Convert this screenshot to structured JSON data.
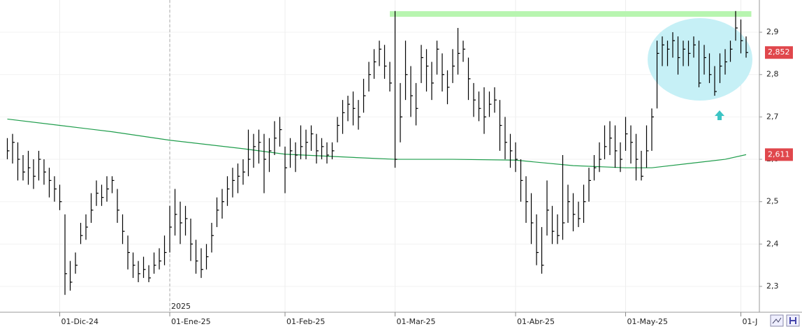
{
  "chart_data": {
    "type": "hlc",
    "color": "#000000",
    "categories": [
      null,
      null,
      null,
      null,
      null,
      null,
      null,
      null,
      null,
      null,
      "01-Dic-24",
      null,
      null,
      null,
      null,
      null,
      null,
      null,
      null,
      null,
      null,
      null,
      null,
      null,
      null,
      null,
      null,
      null,
      null,
      null,
      null,
      "01-Ene-25",
      null,
      null,
      null,
      null,
      null,
      null,
      null,
      null,
      null,
      null,
      null,
      null,
      null,
      null,
      null,
      null,
      null,
      null,
      null,
      null,
      null,
      "01-Feb-25",
      null,
      null,
      null,
      null,
      null,
      null,
      null,
      null,
      null,
      null,
      null,
      null,
      null,
      null,
      null,
      null,
      null,
      null,
      null,
      null,
      "01-Mar-25",
      null,
      null,
      null,
      null,
      null,
      null,
      null,
      null,
      null,
      null,
      null,
      null,
      null,
      null,
      null,
      null,
      null,
      null,
      null,
      null,
      null,
      null,
      "01-Abr-25",
      null,
      null,
      null,
      null,
      null,
      null,
      null,
      null,
      null,
      null,
      null,
      null,
      null,
      null,
      null,
      null,
      null,
      null,
      null,
      null,
      "01-May-25",
      null,
      null,
      null,
      null,
      null,
      null,
      null,
      null,
      null,
      null,
      null,
      null,
      null,
      null,
      null,
      null,
      null,
      null,
      null,
      null,
      null,
      "01-J",
      null
    ],
    "high": [
      2.65,
      2.66,
      2.64,
      2.61,
      2.62,
      2.6,
      2.62,
      2.6,
      2.58,
      2.56,
      2.54,
      2.47,
      2.36,
      2.38,
      2.45,
      2.47,
      2.52,
      2.55,
      2.54,
      2.56,
      2.56,
      2.53,
      2.47,
      2.42,
      2.38,
      2.36,
      2.37,
      2.35,
      2.38,
      2.39,
      2.42,
      2.49,
      2.53,
      2.5,
      2.49,
      2.46,
      2.41,
      2.39,
      2.4,
      2.45,
      2.51,
      2.53,
      2.56,
      2.58,
      2.59,
      2.6,
      2.67,
      2.66,
      2.67,
      2.66,
      2.65,
      2.69,
      2.7,
      2.63,
      2.65,
      2.64,
      2.68,
      2.67,
      2.68,
      2.66,
      2.65,
      2.64,
      2.64,
      2.7,
      2.74,
      2.75,
      2.76,
      2.74,
      2.79,
      2.83,
      2.86,
      2.88,
      2.87,
      2.83,
      2.95,
      2.78,
      2.88,
      2.82,
      2.78,
      2.87,
      2.86,
      2.83,
      2.88,
      2.85,
      2.81,
      2.86,
      2.91,
      2.88,
      2.84,
      2.78,
      2.76,
      2.77,
      2.76,
      2.77,
      2.74,
      2.7,
      2.66,
      2.64,
      2.6,
      2.56,
      2.52,
      2.47,
      2.44,
      2.55,
      2.49,
      2.47,
      2.61,
      2.54,
      2.52,
      2.5,
      2.54,
      2.58,
      2.61,
      2.64,
      2.68,
      2.69,
      2.68,
      2.64,
      2.7,
      2.68,
      2.66,
      2.62,
      2.68,
      2.72,
      2.88,
      2.89,
      2.88,
      2.9,
      2.89,
      2.88,
      2.88,
      2.89,
      2.88,
      2.87,
      2.85,
      2.82,
      2.85,
      2.86,
      2.88,
      2.95,
      2.93,
      2.89
    ],
    "low": [
      2.6,
      2.59,
      2.55,
      2.55,
      2.54,
      2.53,
      2.55,
      2.54,
      2.51,
      2.5,
      2.48,
      2.28,
      2.29,
      2.33,
      2.4,
      2.41,
      2.45,
      2.49,
      2.49,
      2.5,
      2.52,
      2.45,
      2.4,
      2.34,
      2.32,
      2.31,
      2.32,
      2.31,
      2.33,
      2.34,
      2.35,
      2.38,
      2.42,
      2.4,
      2.42,
      2.36,
      2.33,
      2.32,
      2.34,
      2.38,
      2.44,
      2.46,
      2.49,
      2.51,
      2.52,
      2.54,
      2.56,
      2.58,
      2.59,
      2.52,
      2.57,
      2.61,
      2.63,
      2.52,
      2.58,
      2.57,
      2.6,
      2.6,
      2.62,
      2.59,
      2.6,
      2.59,
      2.6,
      2.64,
      2.66,
      2.69,
      2.68,
      2.67,
      2.71,
      2.76,
      2.79,
      2.82,
      2.79,
      2.76,
      2.58,
      2.64,
      2.74,
      2.7,
      2.68,
      2.78,
      2.76,
      2.74,
      2.8,
      2.76,
      2.73,
      2.78,
      2.8,
      2.83,
      2.74,
      2.7,
      2.69,
      2.66,
      2.7,
      2.71,
      2.62,
      2.6,
      2.58,
      2.57,
      2.5,
      2.45,
      2.4,
      2.35,
      2.33,
      2.42,
      2.4,
      2.4,
      2.41,
      2.45,
      2.43,
      2.44,
      2.45,
      2.5,
      2.55,
      2.57,
      2.6,
      2.61,
      2.58,
      2.57,
      2.62,
      2.59,
      2.55,
      2.55,
      2.58,
      2.62,
      2.72,
      2.82,
      2.82,
      2.84,
      2.8,
      2.82,
      2.82,
      2.84,
      2.77,
      2.8,
      2.78,
      2.75,
      2.78,
      2.8,
      2.83,
      2.88,
      2.85,
      2.84
    ],
    "close": [
      2.62,
      2.64,
      2.6,
      2.57,
      2.58,
      2.56,
      2.6,
      2.57,
      2.55,
      2.53,
      2.5,
      2.33,
      2.31,
      2.35,
      2.42,
      2.44,
      2.48,
      2.52,
      2.51,
      2.53,
      2.55,
      2.48,
      2.43,
      2.38,
      2.35,
      2.33,
      2.34,
      2.32,
      2.35,
      2.36,
      2.38,
      2.44,
      2.47,
      2.45,
      2.46,
      2.4,
      2.36,
      2.34,
      2.37,
      2.42,
      2.48,
      2.5,
      2.53,
      2.55,
      2.56,
      2.57,
      2.6,
      2.63,
      2.64,
      2.6,
      2.62,
      2.65,
      2.67,
      2.58,
      2.62,
      2.61,
      2.63,
      2.64,
      2.66,
      2.62,
      2.63,
      2.61,
      2.62,
      2.68,
      2.71,
      2.73,
      2.72,
      2.7,
      2.75,
      2.8,
      2.83,
      2.86,
      2.82,
      2.78,
      2.6,
      2.7,
      2.8,
      2.75,
      2.72,
      2.84,
      2.82,
      2.78,
      2.86,
      2.8,
      2.77,
      2.82,
      2.85,
      2.86,
      2.79,
      2.74,
      2.72,
      2.7,
      2.73,
      2.74,
      2.68,
      2.64,
      2.62,
      2.6,
      2.55,
      2.5,
      2.45,
      2.38,
      2.35,
      2.48,
      2.43,
      2.42,
      2.45,
      2.5,
      2.47,
      2.46,
      2.5,
      2.55,
      2.58,
      2.6,
      2.63,
      2.65,
      2.62,
      2.6,
      2.66,
      2.64,
      2.6,
      2.56,
      2.62,
      2.7,
      2.85,
      2.87,
      2.86,
      2.88,
      2.84,
      2.86,
      2.85,
      2.87,
      2.78,
      2.84,
      2.8,
      2.76,
      2.82,
      2.83,
      2.86,
      2.91,
      2.88,
      2.852
    ],
    "moving_average": {
      "color": "#1f9d4c",
      "x": [
        0,
        10,
        20,
        31,
        45,
        53,
        65,
        74,
        85,
        97,
        108,
        118,
        123,
        130,
        137,
        141
      ],
      "values": [
        2.695,
        2.68,
        2.665,
        2.645,
        2.625,
        2.612,
        2.605,
        2.6,
        2.6,
        2.598,
        2.585,
        2.58,
        2.58,
        2.59,
        2.6,
        2.611
      ]
    },
    "resistance": {
      "value": 2.943,
      "x": [
        73,
        142
      ],
      "color": "#b8f5b0"
    },
    "ylim": [
      2.239,
      2.976
    ],
    "yticks": [
      {
        "value": 2.3,
        "label": "2,3"
      },
      {
        "value": 2.4,
        "label": "2,4"
      },
      {
        "value": 2.5,
        "label": "2,5"
      },
      {
        "value": 2.6,
        "label": "2,6"
      },
      {
        "value": 2.7,
        "label": "2,7"
      },
      {
        "value": 2.8,
        "label": "2,8"
      },
      {
        "value": 2.9,
        "label": "2,9"
      }
    ],
    "price_labels": [
      {
        "value": 2.852,
        "label": "2,852"
      },
      {
        "value": 2.611,
        "label": "2,611"
      }
    ],
    "year_marker": {
      "index": 31,
      "label": "2025"
    }
  }
}
